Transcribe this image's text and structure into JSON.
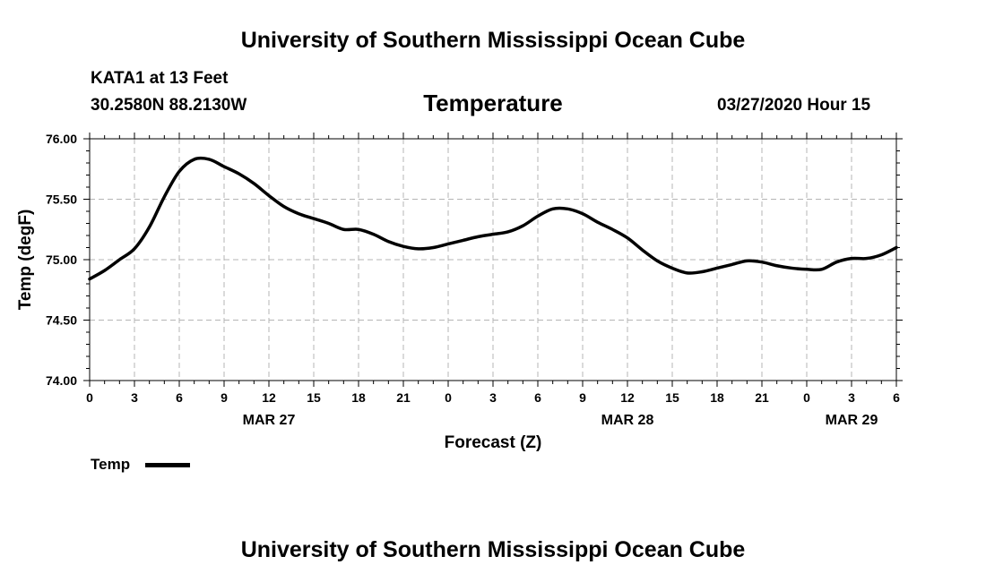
{
  "header": {
    "title_top": "University of Southern Mississippi Ocean Cube",
    "station": "KATA1 at 13 Feet",
    "coords": "30.2580N 88.2130W",
    "chart_title": "Temperature",
    "datetime": "03/27/2020 Hour 15"
  },
  "footer": {
    "title_bottom": "University of Southern Mississippi Ocean Cube"
  },
  "legend": {
    "label": "Temp"
  },
  "chart_data": {
    "type": "line",
    "title": "Temperature",
    "xlabel": "Forecast (Z)",
    "ylabel": "Temp (degF)",
    "ylim": [
      74.0,
      76.0
    ],
    "yticks": [
      "76.00",
      "75.50",
      "75.00",
      "74.50",
      "74.00"
    ],
    "ytick_values": [
      76.0,
      75.5,
      75.0,
      74.5,
      74.0
    ],
    "xlim": [
      0,
      54
    ],
    "xtick_labels": [
      "0",
      "3",
      "6",
      "9",
      "12",
      "15",
      "18",
      "21",
      "0",
      "3",
      "6",
      "9",
      "12",
      "15",
      "18",
      "21",
      "0",
      "3",
      "6"
    ],
    "date_labels": [
      {
        "label": "MAR 27",
        "at": 12
      },
      {
        "label": "MAR 28",
        "at": 36
      },
      {
        "label": "MAR 29",
        "at": 51
      }
    ],
    "grid": true,
    "series": [
      {
        "name": "Temp",
        "color": "#000000",
        "x": [
          0,
          1,
          2,
          3,
          4,
          5,
          6,
          7,
          8,
          9,
          10,
          11,
          12,
          13,
          14,
          15,
          16,
          17,
          18,
          19,
          20,
          21,
          22,
          23,
          24,
          25,
          26,
          27,
          28,
          29,
          30,
          31,
          32,
          33,
          34,
          35,
          36,
          37,
          38,
          39,
          40,
          41,
          42,
          43,
          44,
          45,
          46,
          47,
          48,
          49,
          50,
          51,
          52,
          53,
          54
        ],
        "values": [
          74.84,
          74.91,
          75.0,
          75.09,
          75.27,
          75.52,
          75.73,
          75.83,
          75.83,
          75.77,
          75.71,
          75.63,
          75.53,
          75.44,
          75.38,
          75.34,
          75.3,
          75.25,
          75.25,
          75.21,
          75.15,
          75.11,
          75.09,
          75.1,
          75.13,
          75.16,
          75.19,
          75.21,
          75.23,
          75.28,
          75.36,
          75.42,
          75.42,
          75.38,
          75.31,
          75.25,
          75.18,
          75.08,
          74.99,
          74.93,
          74.89,
          74.9,
          74.93,
          74.96,
          74.99,
          74.98,
          74.95,
          74.93,
          74.92,
          74.92,
          74.98,
          75.01,
          75.01,
          75.04,
          75.1
        ]
      }
    ]
  }
}
